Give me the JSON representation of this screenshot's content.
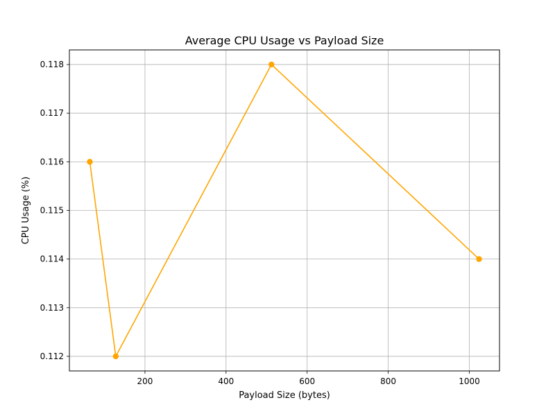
{
  "chart_data": {
    "type": "line",
    "title": "Average CPU Usage vs Payload Size",
    "xlabel": "Payload Size (bytes)",
    "ylabel": "CPU Usage (%)",
    "xlim": [
      13.6,
      1074.4
    ],
    "ylim": [
      0.1117,
      0.1183
    ],
    "xticks": [
      200,
      400,
      600,
      800,
      1000
    ],
    "yticks": [
      0.112,
      0.113,
      0.114,
      0.115,
      0.116,
      0.117,
      0.118
    ],
    "grid": true,
    "series": [
      {
        "color": "#ffa500",
        "marker": "circle",
        "points": [
          {
            "x": 64,
            "y": 0.116
          },
          {
            "x": 128,
            "y": 0.112
          },
          {
            "x": 512,
            "y": 0.118
          },
          {
            "x": 1024,
            "y": 0.114
          }
        ]
      }
    ]
  }
}
